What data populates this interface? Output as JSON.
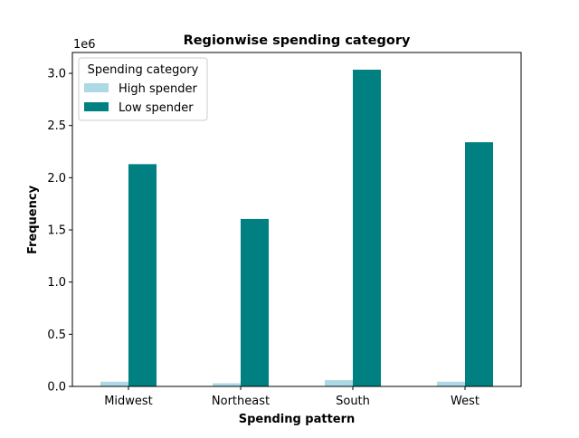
{
  "chart_data": {
    "type": "bar",
    "title": "Regionwise spending category",
    "xlabel": "Spending pattern",
    "ylabel": "Frequency",
    "y_multiplier_label": "1e6",
    "categories": [
      "Midwest",
      "Northeast",
      "South",
      "West"
    ],
    "series": [
      {
        "name": "High spender",
        "color": "#add8e6",
        "values": [
          45000,
          30000,
          60000,
          45000
        ]
      },
      {
        "name": "Low spender",
        "color": "#008080",
        "values": [
          2130000,
          1605000,
          3035000,
          2340000
        ]
      }
    ],
    "ylim": [
      0,
      3200000
    ],
    "yticks": [
      0,
      500000,
      1000000,
      1500000,
      2000000,
      2500000,
      3000000
    ],
    "ytick_labels": [
      "0.0",
      "0.5",
      "1.0",
      "1.5",
      "2.0",
      "2.5",
      "3.0"
    ],
    "grid": false,
    "legend": {
      "title": "Spending category",
      "placement": "top-left"
    }
  }
}
